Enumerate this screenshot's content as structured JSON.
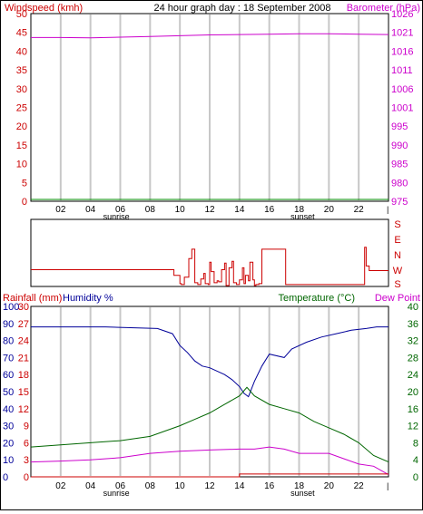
{
  "header": {
    "left_label": "Windspeed (kmh)",
    "center_label": "24 hour graph day : 18 September 2008",
    "right_label": "Barometer (hPa)"
  },
  "middle": {
    "dir_labels": [
      "S",
      "E",
      "N",
      "W",
      "S"
    ]
  },
  "bottom_header": {
    "rain_label": "Rainfall (mm)",
    "humidity_label": "Humidity %",
    "temp_label": "Temperature (°C)",
    "dew_label": "Dew Point"
  },
  "time_axis": {
    "ticks": [
      "02",
      "04",
      "06",
      "08",
      "10",
      "12",
      "14",
      "16",
      "18",
      "20",
      "22"
    ],
    "sunrise_label": "sunrise",
    "sunset_label": "sunset",
    "sunrise_hour": 6.1,
    "sunset_hour": 18.6
  },
  "colors": {
    "wind": "#cc0000",
    "barometer": "#cc00cc",
    "humidity": "#000099",
    "temperature": "#006600",
    "dewpoint": "#cc00cc",
    "rain": "#cc0000",
    "grid": "#c8c8c8"
  },
  "chart_data": [
    {
      "type": "line",
      "left_axis": {
        "label": "Windspeed (kmh)",
        "ylim": [
          0,
          50
        ],
        "ticks": [
          "0",
          "5",
          "10",
          "15",
          "20",
          "25",
          "30",
          "35",
          "40",
          "45",
          "50"
        ]
      },
      "right_axis": {
        "label": "Barometer (hPa)",
        "ylim": [
          975,
          1026
        ],
        "ticks": [
          "975",
          "980",
          "985",
          "990",
          "995",
          "1001",
          "1006",
          "1011",
          "1016",
          "1021",
          "1026"
        ]
      },
      "xlim": [
        0,
        24
      ],
      "series": [
        {
          "name": "Barometer (hPa)",
          "axis": "right",
          "x": [
            0,
            2,
            4,
            6,
            8,
            10,
            12,
            14,
            16,
            18,
            20,
            22,
            24
          ],
          "values": [
            1019.5,
            1019.5,
            1019.4,
            1019.6,
            1019.8,
            1020.0,
            1020.2,
            1020.3,
            1020.4,
            1020.5,
            1020.5,
            1020.4,
            1020.3
          ]
        },
        {
          "name": "Windspeed (kmh)",
          "axis": "left",
          "x": [
            0,
            24
          ],
          "values": [
            0,
            0
          ]
        }
      ],
      "grid": true
    },
    {
      "type": "line",
      "xlim": [
        0,
        24
      ],
      "ylim": [
        0,
        360
      ],
      "series": [
        {
          "name": "Wind direction",
          "x": [
            0,
            9.1,
            9.6,
            10.0,
            10.1,
            10.3,
            10.6,
            10.8,
            11.0,
            11.2,
            11.4,
            11.6,
            11.7,
            11.9,
            12.0,
            12.1,
            12.3,
            12.5,
            12.6,
            12.8,
            13.0,
            13.1,
            13.3,
            13.5,
            13.6,
            13.8,
            14.0,
            14.2,
            14.3,
            14.4,
            14.6,
            14.7,
            14.9,
            15.0,
            15.1,
            15.3,
            15.5,
            17.1,
            17.1,
            17.2,
            22.3,
            22.4,
            22.5,
            22.7,
            24
          ],
          "values": [
            90,
            90,
            60,
            15,
            10,
            50,
            150,
            200,
            20,
            10,
            40,
            70,
            15,
            10,
            130,
            80,
            20,
            30,
            25,
            90,
            125,
            5,
            100,
            135,
            20,
            10,
            35,
            100,
            15,
            60,
            30,
            130,
            35,
            5,
            10,
            15,
            200,
            200,
            10,
            10,
            10,
            210,
            110,
            85,
            85
          ]
        }
      ]
    },
    {
      "type": "line",
      "xlim": [
        0,
        24
      ],
      "left_axis": {
        "labels": [
          "Rainfall (mm)",
          "Humidity %"
        ],
        "humidity_ylim": [
          0,
          100
        ],
        "rain_ylim": [
          0,
          30
        ],
        "humidity_ticks": [
          "0",
          "10",
          "20",
          "30",
          "40",
          "50",
          "60",
          "70",
          "80",
          "90",
          "100"
        ],
        "rain_ticks": [
          "0",
          "3",
          "6",
          "9",
          "12",
          "15",
          "18",
          "21",
          "24",
          "27",
          "30"
        ]
      },
      "right_axis": {
        "labels": [
          "Temperature (°C)",
          "Dew Point"
        ],
        "ylim": [
          0,
          40
        ],
        "ticks": [
          "0",
          "4",
          "8",
          "12",
          "16",
          "20",
          "24",
          "28",
          "32",
          "36",
          "40"
        ]
      },
      "series": [
        {
          "name": "Humidity %",
          "axis": "humidity",
          "x": [
            0,
            5,
            8.5,
            9.5,
            10,
            10.5,
            11,
            11.5,
            12,
            12.5,
            13,
            13.5,
            14,
            14.3,
            14.6,
            15,
            15.5,
            16,
            17,
            17.5,
            18.5,
            19.5,
            20.5,
            21.5,
            22.5,
            23.2,
            24
          ],
          "values": [
            88,
            88,
            87,
            84,
            77,
            73,
            68,
            65,
            64,
            62,
            60,
            57,
            53,
            49,
            47,
            56,
            65,
            72,
            70,
            75,
            79,
            82,
            84,
            86,
            87,
            88,
            88
          ]
        },
        {
          "name": "Temperature (°C)",
          "axis": "temperature",
          "x": [
            0,
            2,
            4,
            6,
            8,
            10,
            11,
            12,
            13,
            14,
            14.5,
            15,
            16,
            17,
            18,
            19,
            20,
            21,
            22,
            23,
            24
          ],
          "values": [
            7,
            7.5,
            8,
            8.5,
            9.5,
            12,
            13.5,
            15,
            17,
            19,
            21,
            19,
            17,
            16,
            15,
            13,
            11.5,
            10,
            8,
            5,
            3.5
          ]
        },
        {
          "name": "Dew Point",
          "axis": "temperature",
          "x": [
            0,
            2,
            4,
            6,
            8,
            10,
            12,
            14,
            15,
            16,
            17,
            18,
            20,
            22,
            23,
            24
          ],
          "values": [
            3.5,
            3.7,
            4,
            4.5,
            5.5,
            6,
            6.3,
            6.5,
            6.5,
            7,
            6.5,
            5.5,
            5.5,
            3,
            2.5,
            0.5
          ]
        },
        {
          "name": "Rainfall (mm)",
          "axis": "rain",
          "x": [
            0,
            13.9,
            14,
            24
          ],
          "values": [
            0,
            0,
            0.5,
            0.5
          ]
        }
      ],
      "grid": true
    }
  ]
}
